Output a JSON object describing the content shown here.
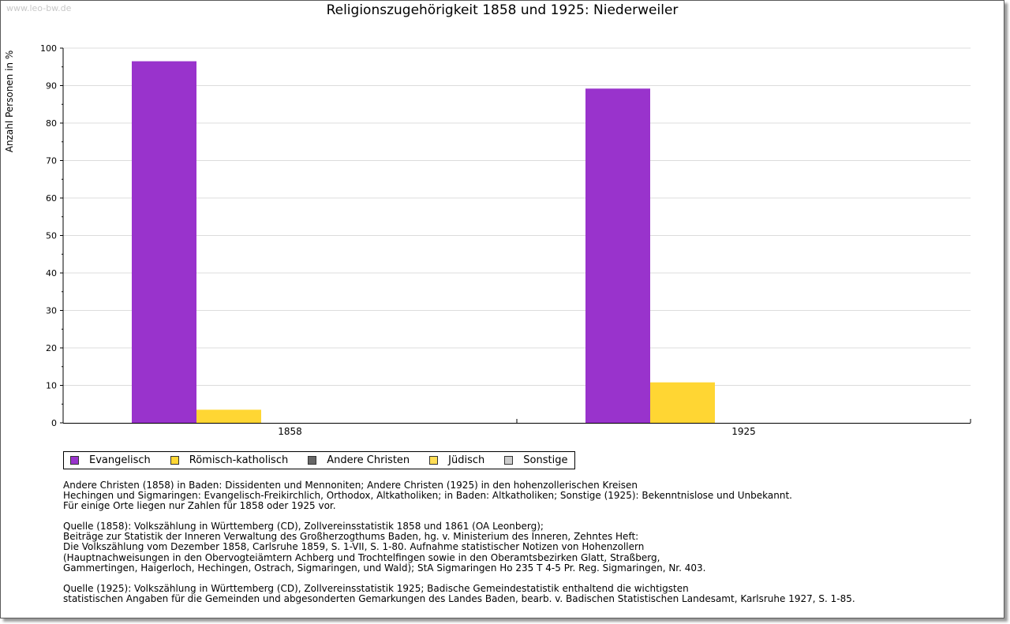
{
  "watermark": "www.leo-bw.de",
  "chart_data": {
    "type": "bar",
    "title": "Religionszugehörigkeit 1858 und 1925: Niederweiler",
    "xlabel": "",
    "ylabel": "Anzahl Personen in %",
    "ylim": [
      0,
      100
    ],
    "yticks": [
      0,
      10,
      20,
      30,
      40,
      50,
      60,
      70,
      80,
      90,
      100
    ],
    "grid": true,
    "categories": [
      "1858",
      "1925"
    ],
    "series": [
      {
        "name": "Evangelisch",
        "color": "#9933cc",
        "values": [
          96.5,
          89.2
        ]
      },
      {
        "name": "Römisch-katholisch",
        "color": "#ffd633",
        "values": [
          3.5,
          10.8
        ]
      },
      {
        "name": "Andere Christen",
        "color": "#666666",
        "values": [
          0,
          0
        ]
      },
      {
        "name": "Jüdisch",
        "color": "#ffdd55",
        "values": [
          0,
          0
        ]
      },
      {
        "name": "Sonstige",
        "color": "#cccccc",
        "values": [
          0,
          0
        ]
      }
    ],
    "legend_position": "bottom-left"
  },
  "notes": [
    "Andere Christen (1858) in Baden: Dissidenten und Mennoniten; Andere Christen (1925) in den hohenzollerischen Kreisen\nHechingen und Sigmaringen: Evangelisch-Freikirchlich, Orthodox, Altkatholiken; in Baden: Altkatholiken; Sonstige (1925): Bekenntnislose und Unbekannt.\nFür einige Orte liegen nur Zahlen für 1858 oder 1925 vor.",
    "Quelle (1858): Volkszählung in Württemberg (CD), Zollvereinsstatistik 1858 und 1861 (OA Leonberg);\nBeiträge zur Statistik der Inneren Verwaltung des Großherzogthums Baden, hg. v. Ministerium des Inneren, Zehntes Heft:\nDie Volkszählung vom Dezember 1858, Carlsruhe 1859, S. 1-VII, S. 1-80. Aufnahme statistischer Notizen von Hohenzollern\n(Hauptnachweisungen in den Obervogteiämtern Achberg und Trochtelfingen sowie in den Oberamtsbezirken Glatt, Straßberg,\nGammertingen, Haigerloch, Hechingen, Ostrach, Sigmaringen, und Wald); StA Sigmaringen Ho 235 T 4-5 Pr. Reg. Sigmaringen, Nr. 403.",
    "Quelle (1925): Volkszählung in Württemberg (CD), Zollvereinsstatistik 1925; Badische Gemeindestatistik enthaltend die wichtigsten\nstatistischen Angaben für die Gemeinden und abgesonderten Gemarkungen des Landes Baden, bearb. v. Badischen Statistischen Landesamt, Karlsruhe 1927, S. 1-85."
  ]
}
